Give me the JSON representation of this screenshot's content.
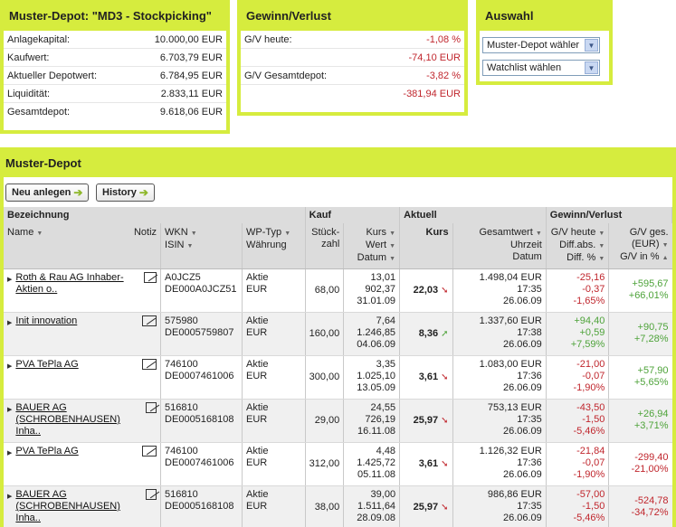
{
  "depot_box": {
    "title": "Muster-Depot: \"MD3 - Stockpicking\"",
    "rows": [
      {
        "label": "Anlagekapital:",
        "value": "10.000,00 EUR"
      },
      {
        "label": "Kaufwert:",
        "value": "6.703,79 EUR"
      },
      {
        "label": "Aktueller Depotwert:",
        "value": "6.784,95 EUR"
      },
      {
        "label": "Liquidität:",
        "value": "2.833,11 EUR"
      },
      {
        "label": "Gesamtdepot:",
        "value": "9.618,06 EUR"
      }
    ]
  },
  "gv_box": {
    "title": "Gewinn/Verlust",
    "rows": [
      {
        "label": "G/V heute:",
        "value": "-1,08 %"
      },
      {
        "label": "",
        "value": "-74,10 EUR"
      },
      {
        "label": "G/V Gesamtdepot:",
        "value": "-3,82 %"
      },
      {
        "label": "",
        "value": "-381,94 EUR"
      }
    ]
  },
  "auswahl_box": {
    "title": "Auswahl",
    "select_depot": "Muster-Depot wähler",
    "select_watchlist": "Watchlist wählen"
  },
  "main": {
    "title": "Muster-Depot",
    "btn_new": "Neu anlegen",
    "btn_history": "History",
    "groups": {
      "bezeichnung": "Bezeichnung",
      "kauf": "Kauf",
      "aktuell": "Aktuell",
      "gv": "Gewinn/Verlust"
    },
    "cols": {
      "name": "Name",
      "notiz": "Notiz",
      "wkn": "WKN",
      "isin": "ISIN",
      "wptyp": "WP-Typ",
      "waehrung": "Währung",
      "stueck1": "Stück-",
      "stueck2": "zahl",
      "kurs_k": "Kurs",
      "wert_k": "Wert",
      "datum_k": "Datum",
      "kurs_a": "Kurs",
      "gesamtwert": "Gesamtwert",
      "uhrzeit": "Uhrzeit",
      "datum_a": "Datum",
      "gvh1": "G/V heute",
      "gvh2": "Diff.abs.",
      "gvh3": "Diff. %",
      "gvg1": "G/V ges.",
      "gvg2": "(EUR)",
      "gvg3": "G/V in %"
    },
    "rows": [
      {
        "name": "Roth & Rau AG Inhaber-Aktien o..",
        "wkn": "A0JCZ5",
        "isin": "DE000A0JCZ51",
        "typ": "Aktie",
        "cur": "EUR",
        "stk": "68,00",
        "kk": "13,01",
        "kw": "902,37",
        "kd": "31.01.09",
        "kurs": "22,03",
        "trend": "down",
        "gw": "1.498,04 EUR",
        "zeit": "17:35",
        "ad": "26.06.09",
        "gh1": "-25,16",
        "gh2": "-0,37",
        "gh3": "-1,65%",
        "gg1": "+595,67",
        "gg2": "+66,01%"
      },
      {
        "name": "Init innovation",
        "wkn": "575980",
        "isin": "DE0005759807",
        "typ": "Aktie",
        "cur": "EUR",
        "stk": "160,00",
        "kk": "7,64",
        "kw": "1.246,85",
        "kd": "04.06.09",
        "kurs": "8,36",
        "trend": "up",
        "gw": "1.337,60 EUR",
        "zeit": "17:38",
        "ad": "26.06.09",
        "gh1": "+94,40",
        "gh2": "+0,59",
        "gh3": "+7,59%",
        "gg1": "+90,75",
        "gg2": "+7,28%"
      },
      {
        "name": "PVA TePla AG",
        "wkn": "746100",
        "isin": "DE0007461006",
        "typ": "Aktie",
        "cur": "EUR",
        "stk": "300,00",
        "kk": "3,35",
        "kw": "1.025,10",
        "kd": "13.05.09",
        "kurs": "3,61",
        "trend": "down",
        "gw": "1.083,00 EUR",
        "zeit": "17:36",
        "ad": "26.06.09",
        "gh1": "-21,00",
        "gh2": "-0,07",
        "gh3": "-1,90%",
        "gg1": "+57,90",
        "gg2": "+5,65%"
      },
      {
        "name": "BAUER AG (SCHROBENHAUSEN) Inha..",
        "wkn": "516810",
        "isin": "DE0005168108",
        "typ": "Aktie",
        "cur": "EUR",
        "stk": "29,00",
        "kk": "24,55",
        "kw": "726,19",
        "kd": "16.11.08",
        "kurs": "25,97",
        "trend": "down",
        "gw": "753,13 EUR",
        "zeit": "17:35",
        "ad": "26.06.09",
        "gh1": "-43,50",
        "gh2": "-1,50",
        "gh3": "-5,46%",
        "gg1": "+26,94",
        "gg2": "+3,71%"
      },
      {
        "name": "PVA TePla AG",
        "wkn": "746100",
        "isin": "DE0007461006",
        "typ": "Aktie",
        "cur": "EUR",
        "stk": "312,00",
        "kk": "4,48",
        "kw": "1.425,72",
        "kd": "05.11.08",
        "kurs": "3,61",
        "trend": "down",
        "gw": "1.126,32 EUR",
        "zeit": "17:36",
        "ad": "26.06.09",
        "gh1": "-21,84",
        "gh2": "-0,07",
        "gh3": "-1,90%",
        "gg1": "-299,40",
        "gg2": "-21,00%"
      },
      {
        "name": "BAUER AG (SCHROBENHAUSEN) Inha..",
        "wkn": "516810",
        "isin": "DE0005168108",
        "typ": "Aktie",
        "cur": "EUR",
        "stk": "38,00",
        "kk": "39,00",
        "kw": "1.511,64",
        "kd": "28.09.08",
        "kurs": "25,97",
        "trend": "down",
        "gw": "986,86 EUR",
        "zeit": "17:35",
        "ad": "26.06.09",
        "gh1": "-57,00",
        "gh2": "-1,50",
        "gh3": "-5,46%",
        "gg1": "-524,78",
        "gg2": "-34,72%"
      }
    ]
  }
}
